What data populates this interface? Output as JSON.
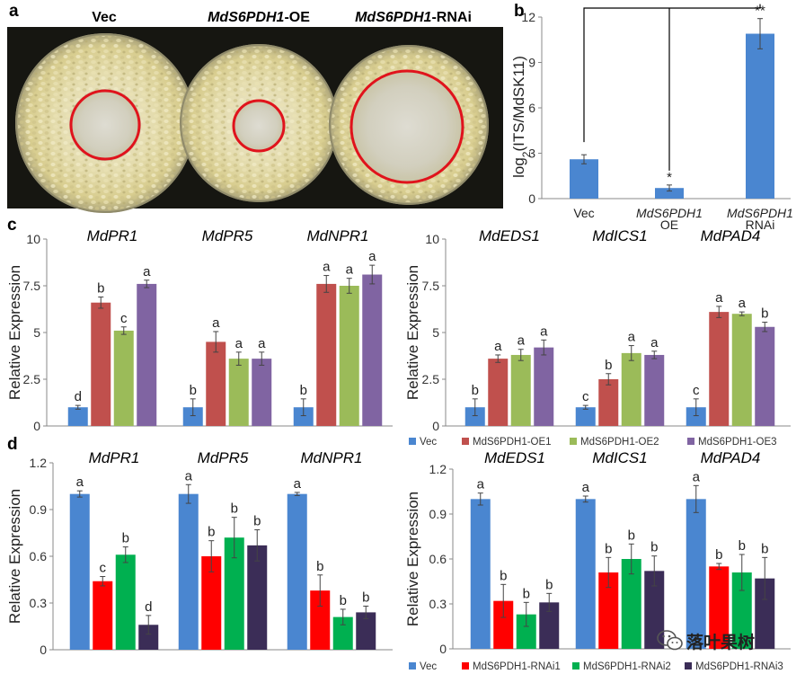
{
  "panel_a": {
    "label": "a",
    "dish_labels": {
      "vec": "Vec",
      "oe_gene": "MdS6PDH1",
      "oe_suffix": "-OE",
      "rnai_gene": "MdS6PDH1",
      "rnai_suffix": "-RNAi"
    }
  },
  "watermark": "落叶果树",
  "chart_data": [
    {
      "id": "b",
      "panel_label": "b",
      "type": "bar",
      "ylabel_main": "log",
      "ylabel_sub": "2",
      "ylabel_rest": "(ITS/MdSK11)",
      "ylim": [
        0,
        12
      ],
      "yticks": [
        "0",
        "3",
        "6",
        "9",
        "12"
      ],
      "categories": [
        [
          "Vec"
        ],
        [
          "MdS6PDH1",
          "OE"
        ],
        [
          "MdS6PDH1",
          "RNAi"
        ]
      ],
      "values": [
        2.6,
        0.7,
        10.9
      ],
      "errors": [
        0.3,
        0.2,
        1.0
      ],
      "sig": [
        "",
        "*",
        "**"
      ],
      "color": "#4a86d0"
    },
    {
      "id": "c_left",
      "panel_label": "c",
      "type": "bar",
      "ylabel": "Relative Expression",
      "ylim": [
        0,
        10
      ],
      "yticks": [
        "0",
        "2.5",
        "5",
        "7.5",
        "10"
      ],
      "groups": [
        "MdPR1",
        "MdPR5",
        "MdNPR1"
      ],
      "series": [
        {
          "name": "Vec",
          "color": "#4a86d0",
          "values": [
            1.0,
            1.0,
            1.0
          ],
          "errors": [
            0.1,
            0.45,
            0.45
          ]
        },
        {
          "name": "MdS6PDH1-OE1",
          "color": "#c0504d",
          "values": [
            6.6,
            4.5,
            7.6
          ],
          "errors": [
            0.3,
            0.55,
            0.45
          ]
        },
        {
          "name": "MdS6PDH1-OE2",
          "color": "#9bbb59",
          "values": [
            5.1,
            3.6,
            7.5
          ],
          "errors": [
            0.2,
            0.35,
            0.4
          ]
        },
        {
          "name": "MdS6PDH1-OE3",
          "color": "#8064a2",
          "values": [
            7.6,
            3.6,
            8.1
          ],
          "errors": [
            0.2,
            0.35,
            0.5
          ]
        }
      ],
      "letters": [
        [
          "d",
          "b",
          "c",
          "a"
        ],
        [
          "b",
          "a",
          "a",
          "a"
        ],
        [
          "b",
          "a",
          "a",
          "a"
        ]
      ]
    },
    {
      "id": "c_right",
      "type": "bar",
      "ylabel": "Relative Expression",
      "ylim": [
        0,
        10
      ],
      "yticks": [
        "0",
        "2.5",
        "5",
        "7.5",
        "10"
      ],
      "groups": [
        "MdEDS1",
        "MdICS1",
        "MdPAD4"
      ],
      "series": [
        {
          "name": "Vec",
          "color": "#4a86d0",
          "values": [
            1.0,
            1.0,
            1.0
          ],
          "errors": [
            0.45,
            0.1,
            0.45
          ]
        },
        {
          "name": "MdS6PDH1-OE1",
          "color": "#c0504d",
          "values": [
            3.6,
            2.5,
            6.1
          ],
          "errors": [
            0.2,
            0.3,
            0.3
          ]
        },
        {
          "name": "MdS6PDH1-OE2",
          "color": "#9bbb59",
          "values": [
            3.8,
            3.9,
            6.0
          ],
          "errors": [
            0.3,
            0.4,
            0.1
          ]
        },
        {
          "name": "MdS6PDH1-OE3",
          "color": "#8064a2",
          "values": [
            4.2,
            3.8,
            5.3
          ],
          "errors": [
            0.4,
            0.2,
            0.25
          ]
        }
      ],
      "letters": [
        [
          "b",
          "a",
          "a",
          "a"
        ],
        [
          "c",
          "b",
          "a",
          "a"
        ],
        [
          "c",
          "a",
          "a",
          "b"
        ]
      ]
    },
    {
      "id": "d_left",
      "panel_label": "d",
      "type": "bar",
      "ylabel": "Relative Expression",
      "ylim": [
        0,
        1.2
      ],
      "yticks": [
        "0",
        "0.3",
        "0.6",
        "0.9",
        "1.2"
      ],
      "groups": [
        "MdPR1",
        "MdPR5",
        "MdNPR1"
      ],
      "series": [
        {
          "name": "Vec",
          "color": "#4a86d0",
          "values": [
            1.0,
            1.0,
            1.0
          ],
          "errors": [
            0.02,
            0.06,
            0.01
          ]
        },
        {
          "name": "MdS6PDH1-RNAi1",
          "color": "#ff0000",
          "values": [
            0.44,
            0.6,
            0.38
          ],
          "errors": [
            0.03,
            0.1,
            0.1
          ]
        },
        {
          "name": "MdS6PDH1-RNAi2",
          "color": "#00b050",
          "values": [
            0.61,
            0.72,
            0.21
          ],
          "errors": [
            0.05,
            0.13,
            0.05
          ]
        },
        {
          "name": "MdS6PDH1-RNAi3",
          "color": "#3b2d57",
          "values": [
            0.16,
            0.67,
            0.24
          ],
          "errors": [
            0.06,
            0.1,
            0.04
          ]
        }
      ],
      "letters": [
        [
          "a",
          "c",
          "b",
          "d"
        ],
        [
          "a",
          "b",
          "b",
          "b"
        ],
        [
          "a",
          "b",
          "b",
          "b"
        ]
      ]
    },
    {
      "id": "d_right",
      "type": "bar",
      "ylabel": "Relative Expression",
      "ylim": [
        0,
        1.2
      ],
      "yticks": [
        "0",
        "0.3",
        "0.6",
        "0.9",
        "1.2"
      ],
      "groups": [
        "MdEDS1",
        "MdICS1",
        "MdPAD4"
      ],
      "series": [
        {
          "name": "Vec",
          "color": "#4a86d0",
          "values": [
            1.0,
            1.0,
            1.0
          ],
          "errors": [
            0.04,
            0.02,
            0.09
          ]
        },
        {
          "name": "MdS6PDH1-RNAi1",
          "color": "#ff0000",
          "values": [
            0.32,
            0.51,
            0.55
          ],
          "errors": [
            0.11,
            0.1,
            0.02
          ]
        },
        {
          "name": "MdS6PDH1-RNAi2",
          "color": "#00b050",
          "values": [
            0.23,
            0.6,
            0.51
          ],
          "errors": [
            0.08,
            0.1,
            0.12
          ]
        },
        {
          "name": "MdS6PDH1-RNAi3",
          "color": "#3b2d57",
          "values": [
            0.31,
            0.52,
            0.47
          ],
          "errors": [
            0.06,
            0.1,
            0.14
          ]
        }
      ],
      "letters": [
        [
          "a",
          "b",
          "b",
          "b"
        ],
        [
          "a",
          "b",
          "b",
          "b"
        ],
        [
          "a",
          "b",
          "b",
          "b"
        ]
      ]
    }
  ]
}
